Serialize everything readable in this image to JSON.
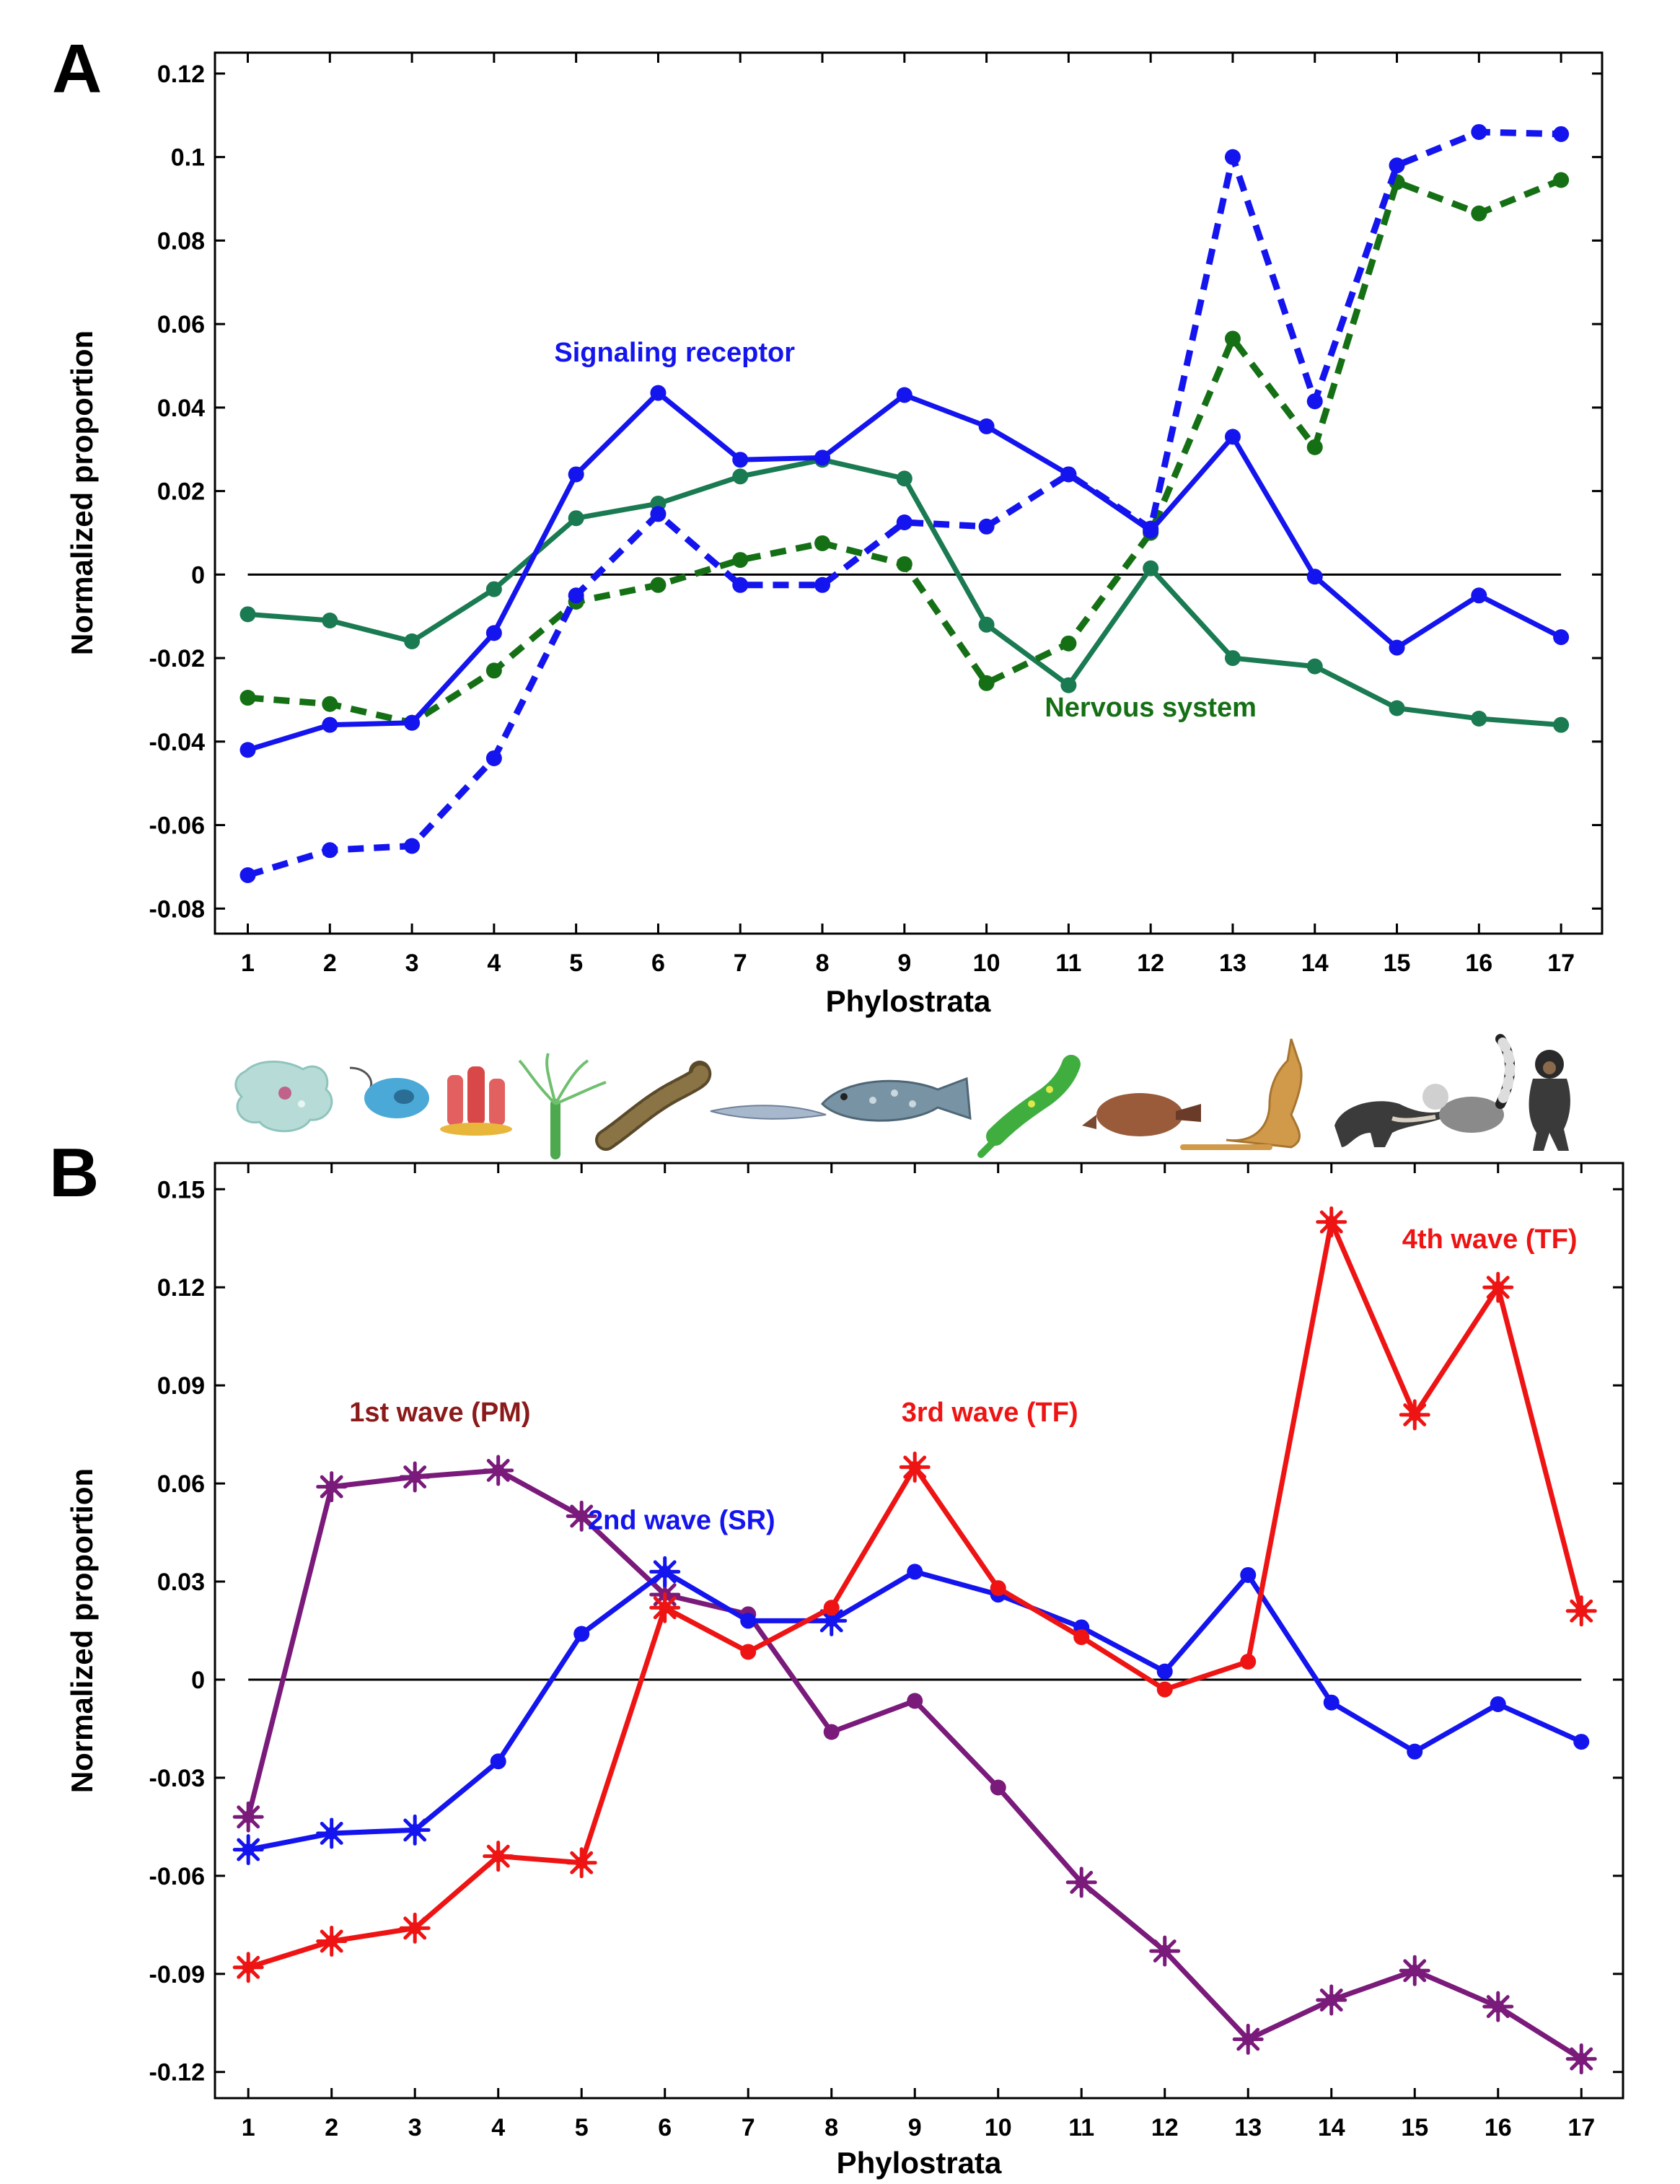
{
  "chart_data": [
    {
      "panel": "A",
      "type": "line",
      "xlabel": "Phylostrata",
      "ylabel": "Normalized proportion",
      "x": [
        1,
        2,
        3,
        4,
        5,
        6,
        7,
        8,
        9,
        10,
        11,
        12,
        13,
        14,
        15,
        16,
        17
      ],
      "xlim": [
        0.6,
        17.5
      ],
      "ylim": [
        -0.086,
        0.125
      ],
      "yticks": [
        -0.08,
        -0.06,
        -0.04,
        -0.02,
        0,
        0.02,
        0.04,
        0.06,
        0.08,
        0.1,
        0.12
      ],
      "ytick_labels": [
        "-0.08",
        "-0.06",
        "-0.04",
        "-0.02",
        "0",
        "0.02",
        "0.04",
        "0.06",
        "0.08",
        "0.1",
        "0.12"
      ],
      "zero_line": true,
      "series": [
        {
          "name": "Nervous system (solid)",
          "color": "#1a7a52",
          "style": "solid",
          "marker": "circle",
          "values": [
            -0.0095,
            -0.011,
            -0.016,
            -0.0035,
            0.0135,
            0.017,
            0.0235,
            0.0275,
            0.023,
            -0.012,
            -0.0265,
            0.0015,
            -0.02,
            -0.022,
            -0.032,
            -0.0345,
            -0.036
          ]
        },
        {
          "name": "Nervous system (dashed)",
          "color": "#157015",
          "style": "dashed",
          "marker": "circle",
          "values": [
            -0.0295,
            -0.031,
            -0.0355,
            -0.023,
            -0.0065,
            -0.0025,
            0.0035,
            0.0075,
            0.0025,
            -0.026,
            -0.0165,
            0.01,
            0.0565,
            0.0305,
            0.094,
            0.0865,
            0.0945
          ]
        },
        {
          "name": "Signaling receptor (solid)",
          "color": "#1414ee",
          "style": "solid",
          "marker": "circle",
          "values": [
            -0.042,
            -0.036,
            -0.0355,
            -0.014,
            0.024,
            0.0435,
            0.0275,
            0.028,
            0.043,
            0.0355,
            0.024,
            0.0105,
            0.033,
            -0.0005,
            -0.0175,
            -0.005,
            -0.015
          ]
        },
        {
          "name": "Signaling receptor (dashed)",
          "color": "#1414ee",
          "style": "dashed",
          "marker": "circle",
          "values": [
            -0.072,
            -0.066,
            -0.065,
            -0.044,
            -0.005,
            0.0145,
            -0.0025,
            -0.0025,
            0.0125,
            0.0115,
            0.024,
            0.011,
            0.1,
            0.0415,
            0.098,
            0.106,
            0.1055
          ]
        }
      ],
      "annotations": [
        {
          "text": "Signaling receptor",
          "color": "#1414ee",
          "x": 6.2,
          "y": 0.051
        },
        {
          "text": "Nervous system",
          "color": "#157015",
          "x": 12.0,
          "y": -0.034
        }
      ]
    },
    {
      "panel": "B",
      "type": "line",
      "xlabel": "Phylostrata",
      "ylabel": "Normalized proportion",
      "x": [
        1,
        2,
        3,
        4,
        5,
        6,
        7,
        8,
        9,
        10,
        11,
        12,
        13,
        14,
        15,
        16,
        17
      ],
      "xlim": [
        0.6,
        17.5
      ],
      "ylim": [
        -0.128,
        0.158
      ],
      "yticks": [
        -0.12,
        -0.09,
        -0.06,
        -0.03,
        0,
        0.03,
        0.06,
        0.09,
        0.12,
        0.15
      ],
      "ytick_labels": [
        "-0.12",
        "-0.09",
        "-0.06",
        "-0.03",
        "0",
        "0.03",
        "0.06",
        "0.09",
        "0.12",
        "0.15"
      ],
      "zero_line": true,
      "series": [
        {
          "name": "1st wave (PM)",
          "color": "#7a1a7a",
          "values": [
            -0.042,
            0.059,
            0.062,
            0.064,
            0.05,
            0.026,
            0.02,
            -0.016,
            -0.0065,
            -0.033,
            -0.062,
            -0.083,
            -0.11,
            -0.098,
            -0.089,
            -0.1,
            -0.116
          ],
          "markers": [
            "star",
            "star",
            "star",
            "star",
            "star",
            "star",
            "circle",
            "circle",
            "circle",
            "circle",
            "star",
            "star",
            "star",
            "star",
            "star",
            "star",
            "star"
          ]
        },
        {
          "name": "2nd wave (SR)",
          "color": "#1414ee",
          "values": [
            -0.052,
            -0.047,
            -0.046,
            -0.025,
            0.014,
            0.033,
            0.018,
            0.018,
            0.033,
            0.026,
            0.016,
            0.0025,
            0.032,
            -0.007,
            -0.022,
            -0.0075,
            -0.019
          ],
          "markers": [
            "star",
            "star",
            "star",
            "circle",
            "circle",
            "star",
            "circle",
            "star",
            "circle",
            "circle",
            "circle",
            "circle",
            "circle",
            "circle",
            "circle",
            "circle",
            "circle"
          ]
        },
        {
          "name": "3rd/4th wave (TF)",
          "color": "#ee1414",
          "values": [
            -0.088,
            -0.08,
            -0.076,
            -0.054,
            -0.056,
            0.022,
            0.0085,
            0.022,
            0.065,
            0.028,
            0.013,
            -0.003,
            0.0055,
            0.14,
            0.081,
            0.12,
            0.021
          ],
          "markers": [
            "star",
            "star",
            "star",
            "star",
            "star",
            "star",
            "circle",
            "circle",
            "star",
            "circle",
            "circle",
            "circle",
            "circle",
            "star",
            "star",
            "star",
            "star"
          ]
        }
      ],
      "annotations": [
        {
          "text": "1st wave (PM)",
          "color": "#8b1a1a",
          "x": 3.3,
          "y": 0.079
        },
        {
          "text": "2nd wave (SR)",
          "color": "#1414ee",
          "x": 6.2,
          "y": 0.046
        },
        {
          "text": "3rd wave (TF)",
          "color": "#ee1414",
          "x": 9.9,
          "y": 0.079
        },
        {
          "text": "4th wave (TF)",
          "color": "#ee1414",
          "x": 15.9,
          "y": 0.132
        }
      ]
    }
  ],
  "panels": {
    "a": "A",
    "b": "B"
  },
  "organisms": [
    "amoeba-icon",
    "flagellate-icon",
    "sponge-icon",
    "hydra-icon",
    "worm-icon",
    "lancelet-icon",
    "coelacanth-icon",
    "lizard-icon",
    "platypus-icon",
    "kangaroo-icon",
    "anteater-icon",
    "lemur-icon",
    "chimpanzee-icon"
  ]
}
